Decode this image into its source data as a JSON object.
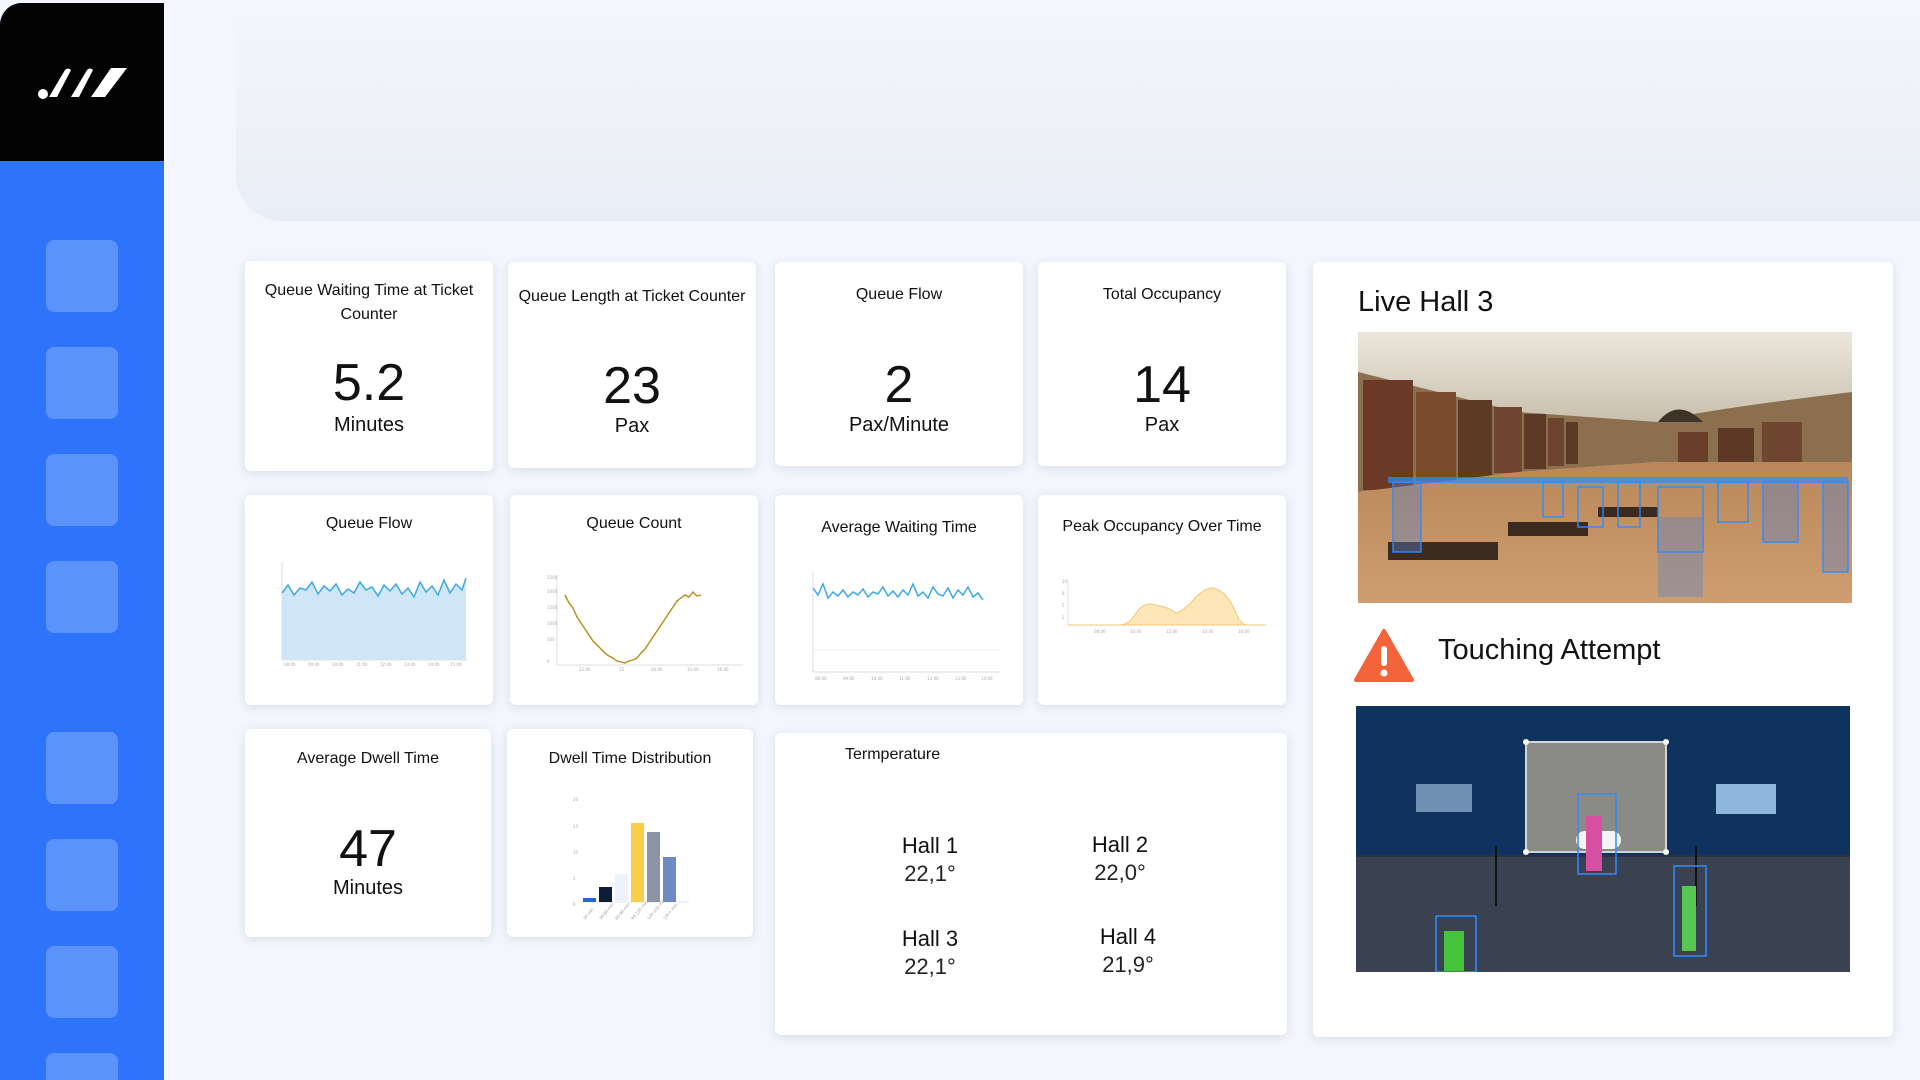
{
  "metrics": [
    {
      "title": "Queue Waiting Time at Ticket Counter",
      "value": "5.2",
      "unit": "Minutes"
    },
    {
      "title": "Queue Length at Ticket Counter",
      "value": "23",
      "unit": "Pax"
    },
    {
      "title": "Queue Flow",
      "value": "2",
      "unit": "Pax/Minute"
    },
    {
      "title": "Total Occupancy",
      "value": "14",
      "unit": "Pax"
    }
  ],
  "charts": {
    "queue_flow_title": "Queue Flow",
    "queue_count_title": "Queue Count",
    "avg_waiting_title": "Average Waiting Time",
    "peak_occupancy_title": "Peak Occupancy Over Time",
    "dwell_dist_title": "Dwell Time Distribution"
  },
  "dwell": {
    "title": "Average Dwell Time",
    "value": "47",
    "unit": "Minutes"
  },
  "temperature": {
    "title": "Termperature",
    "halls": [
      {
        "name": "Hall 1",
        "value": "22,1°"
      },
      {
        "name": "Hall 2",
        "value": "22,0°"
      },
      {
        "name": "Hall 3",
        "value": "22,1°"
      },
      {
        "name": "Hall 4",
        "value": "21,9°"
      }
    ]
  },
  "live": {
    "title": "Live Hall 3",
    "alert_title": "Touching Attempt"
  },
  "colors": {
    "accent": "#2e74fb",
    "sidebar_top": "#030303",
    "alert": "#f3643a"
  },
  "icons": {
    "logo": "brand-logo-icon",
    "alert": "warning-triangle-icon"
  }
}
